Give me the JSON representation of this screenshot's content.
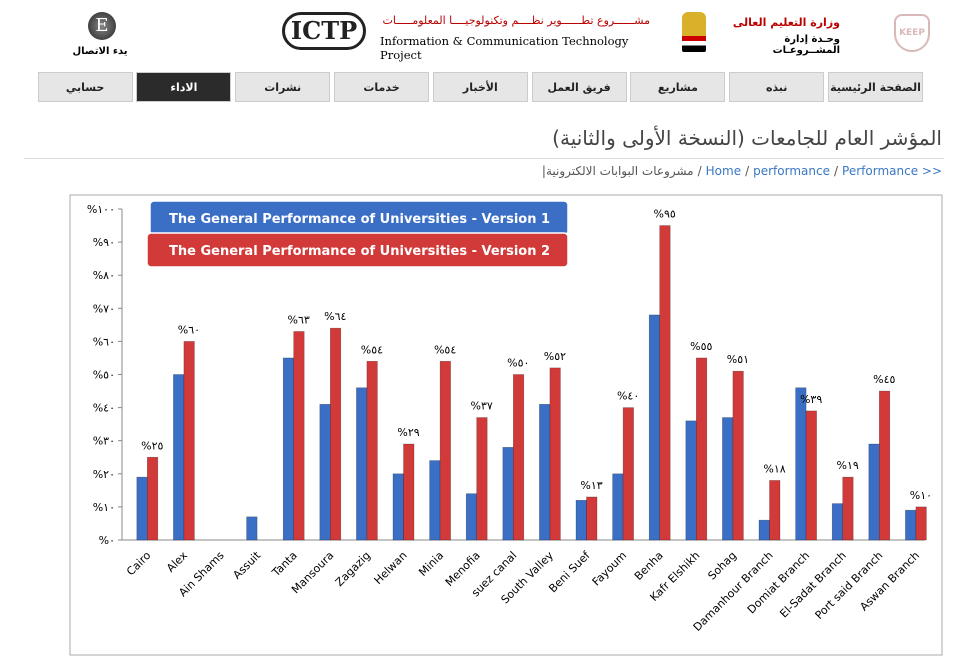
{
  "header": {
    "contact": "يدء الاتصال",
    "logo_letter": "E",
    "ictp": "ICTP",
    "project_ar": "مشــــــروع تطــــــوير نظــــم وتكنولوجيــــا المعلومـــــات",
    "project_en": "Information & Communication Technology Project",
    "ministry": "وزارة التعليم العالى",
    "unit": "وحـدة إدارة المشــروعـات",
    "keep": "KEEP"
  },
  "nav": [
    "الصفحة الرئيسية",
    "نبذه",
    "مشاريع",
    "فريق العمل",
    "الأخبار",
    "خدمات",
    "نشرات",
    "الاداء",
    "حسابي"
  ],
  "page_title": "المؤشر العام للجامعات (النسخة الأولى والثانية)",
  "breadcrumb": {
    "items": [
      "Performance >>",
      "performance",
      "Home",
      "مشروعات البوابات الالكترونية"
    ],
    "separator": "/",
    "end": "|"
  },
  "chart_data": {
    "type": "bar",
    "categories": [
      "Cairo",
      "Alex",
      "Ain Shams",
      "Assuit",
      "Tanta",
      "Mansoura",
      "Zagazig",
      "Helwan",
      "Minia",
      "Menofia",
      "suez canal",
      "South Valley",
      "Beni Suef",
      "Fayoum",
      "Benha",
      "Kafr Elshikh",
      "Sohag",
      "Damanhour Branch",
      "Domiat Branch",
      "El-Sadat Branch",
      "Port said Branch",
      "Aswan Branch"
    ],
    "series": [
      {
        "name": "The General Performance of Universities - Version 1",
        "color": "#3b6fc6",
        "values": [
          19,
          50,
          null,
          7,
          55,
          41,
          46,
          20,
          24,
          14,
          28,
          41,
          12,
          20,
          68,
          36,
          37,
          6,
          46,
          11,
          29,
          9
        ]
      },
      {
        "name": "The General Performance of Universities - Version 2",
        "color": "#d23a3a",
        "values": [
          25,
          60,
          null,
          null,
          63,
          64,
          54,
          29,
          54,
          37,
          50,
          52,
          13,
          40,
          95,
          55,
          51,
          18,
          39,
          19,
          45,
          10
        ],
        "value_labels": [
          "%٢٥",
          "%٦٠",
          null,
          null,
          "%٦٣",
          "%٦٤",
          "%٥٤",
          "%٢٩",
          "%٥٤",
          "%٣٧",
          "%٥٠",
          "%٥٢",
          "%١٣",
          "%٤٠",
          "%٩٥",
          "%٥٥",
          "%٥١",
          "%١٨",
          "%٣٩",
          "%١٩",
          "%٤٥",
          "%١٠"
        ]
      }
    ],
    "ylim": [
      0,
      100
    ],
    "yticks": [
      {
        "value": 0,
        "label": "%٠"
      },
      {
        "value": 10,
        "label": "%١٠"
      },
      {
        "value": 20,
        "label": "%٢٠"
      },
      {
        "value": 30,
        "label": "%٣٠"
      },
      {
        "value": 40,
        "label": "%٤٠"
      },
      {
        "value": 50,
        "label": "%٥٠"
      },
      {
        "value": 60,
        "label": "%٦٠"
      },
      {
        "value": 70,
        "label": "%٧٠"
      },
      {
        "value": 80,
        "label": "%٨٠"
      },
      {
        "value": 90,
        "label": "%٩٠"
      },
      {
        "value": 100,
        "label": "%١٠٠"
      }
    ],
    "legend": "top-left"
  }
}
